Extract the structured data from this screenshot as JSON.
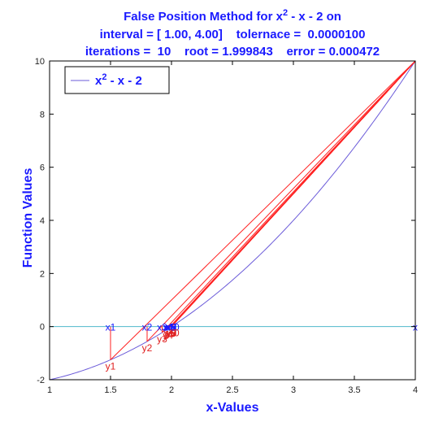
{
  "chart_data": {
    "type": "line",
    "title": {
      "line1_prefix": "False Position Method for x",
      "line1_sup": "2",
      "line1_suffix": " - x - 2 on",
      "line2": "interval = [ 1.00, 4.00]    tolernace =  0.0000100",
      "line3": "iterations =  10    root = 1.999843    error = 0.000472"
    },
    "xlabel": "x-Values",
    "ylabel": "Function Values",
    "xlim": [
      1,
      4
    ],
    "ylim": [
      -2,
      10
    ],
    "xticks": [
      1,
      1.5,
      2,
      2.5,
      3,
      3.5,
      4
    ],
    "xtick_labels": [
      "1",
      "1.5",
      "2",
      "2.5",
      "3",
      "3.5",
      "4"
    ],
    "yticks": [
      -2,
      0,
      2,
      4,
      6,
      8,
      10
    ],
    "ytick_labels": [
      "-2",
      "0",
      "2",
      "4",
      "6",
      "8",
      "10"
    ],
    "grid": false,
    "legend": {
      "placement": "top-left",
      "label_prefix": "x",
      "label_sup": "2",
      "label_suffix": " - x - 2"
    },
    "colors": {
      "function": "#6b5bd9",
      "secant": "#ff2020",
      "axis_line": "#4fb8cc",
      "title": "#1a1aff",
      "x_label": "#1a1aff",
      "y_label": "#e02020"
    },
    "function": {
      "name": "x^2 - x - 2",
      "coefficients": [
        1,
        -1,
        -2
      ],
      "x_range": [
        1,
        4
      ]
    },
    "fixed_point": {
      "x": 4,
      "y": 10
    },
    "iterates": [
      {
        "x": 1.5,
        "y": -1.25
      },
      {
        "x": 1.8,
        "y": -0.56
      },
      {
        "x": 1.9231,
        "y": -0.2249
      },
      {
        "x": 1.9714,
        "y": -0.0851
      },
      {
        "x": 1.9893,
        "y": -0.032
      },
      {
        "x": 1.9961,
        "y": -0.0117
      },
      {
        "x": 1.9986,
        "y": -0.0042
      },
      {
        "x": 1.9995,
        "y": -0.0015
      },
      {
        "x": 1.9998,
        "y": -0.0005
      },
      {
        "x": 1.99984,
        "y": -0.0002
      }
    ],
    "x_labels": [
      "x1",
      "x2",
      "x3",
      "x4",
      "x5",
      "x6",
      "x7",
      "x8",
      "x9",
      "x10"
    ],
    "y_labels": [
      "y1",
      "y2",
      "y3",
      "y4",
      "y5",
      "y6",
      "y7",
      "y8",
      "y9",
      "y10"
    ],
    "endpoint_label": {
      "x": 4,
      "y": 0,
      "text": "x"
    }
  }
}
